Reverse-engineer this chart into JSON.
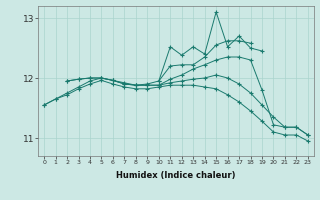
{
  "xlabel": "Humidex (Indice chaleur)",
  "bg_color": "#cce8e4",
  "grid_color": "#aad4ce",
  "line_color": "#1a7a6e",
  "x_values": [
    0,
    1,
    2,
    3,
    4,
    5,
    6,
    7,
    8,
    9,
    10,
    11,
    12,
    13,
    14,
    15,
    16,
    17,
    18,
    19,
    20,
    21,
    22,
    23
  ],
  "ylim": [
    10.7,
    13.2
  ],
  "yticks": [
    11,
    12,
    13
  ],
  "lines": [
    [
      null,
      null,
      11.95,
      11.98,
      12.0,
      12.0,
      11.96,
      11.9,
      11.88,
      11.9,
      11.95,
      12.52,
      12.38,
      12.52,
      12.4,
      13.1,
      12.52,
      12.7,
      12.5,
      12.45,
      null,
      null,
      null,
      null
    ],
    [
      null,
      null,
      null,
      null,
      null,
      null,
      null,
      null,
      null,
      null,
      11.95,
      12.2,
      12.22,
      12.22,
      12.35,
      12.55,
      12.62,
      12.62,
      12.58,
      null,
      null,
      null,
      null,
      null
    ],
    [
      null,
      null,
      11.95,
      11.98,
      12.0,
      12.0,
      11.96,
      11.9,
      11.88,
      11.88,
      11.88,
      11.98,
      12.05,
      12.15,
      12.22,
      12.3,
      12.35,
      12.35,
      12.3,
      11.8,
      11.22,
      11.18,
      11.18,
      11.05
    ],
    [
      11.55,
      11.65,
      11.75,
      11.85,
      11.95,
      12.0,
      11.96,
      11.92,
      11.88,
      11.88,
      11.88,
      11.92,
      11.95,
      11.98,
      12.0,
      12.05,
      12.0,
      11.9,
      11.75,
      11.55,
      11.35,
      11.18,
      11.18,
      11.05
    ],
    [
      11.55,
      11.65,
      11.72,
      11.82,
      11.9,
      11.96,
      11.9,
      11.85,
      11.82,
      11.82,
      11.85,
      11.88,
      11.88,
      11.88,
      11.85,
      11.82,
      11.72,
      11.6,
      11.45,
      11.28,
      11.1,
      11.05,
      11.05,
      10.95
    ]
  ]
}
